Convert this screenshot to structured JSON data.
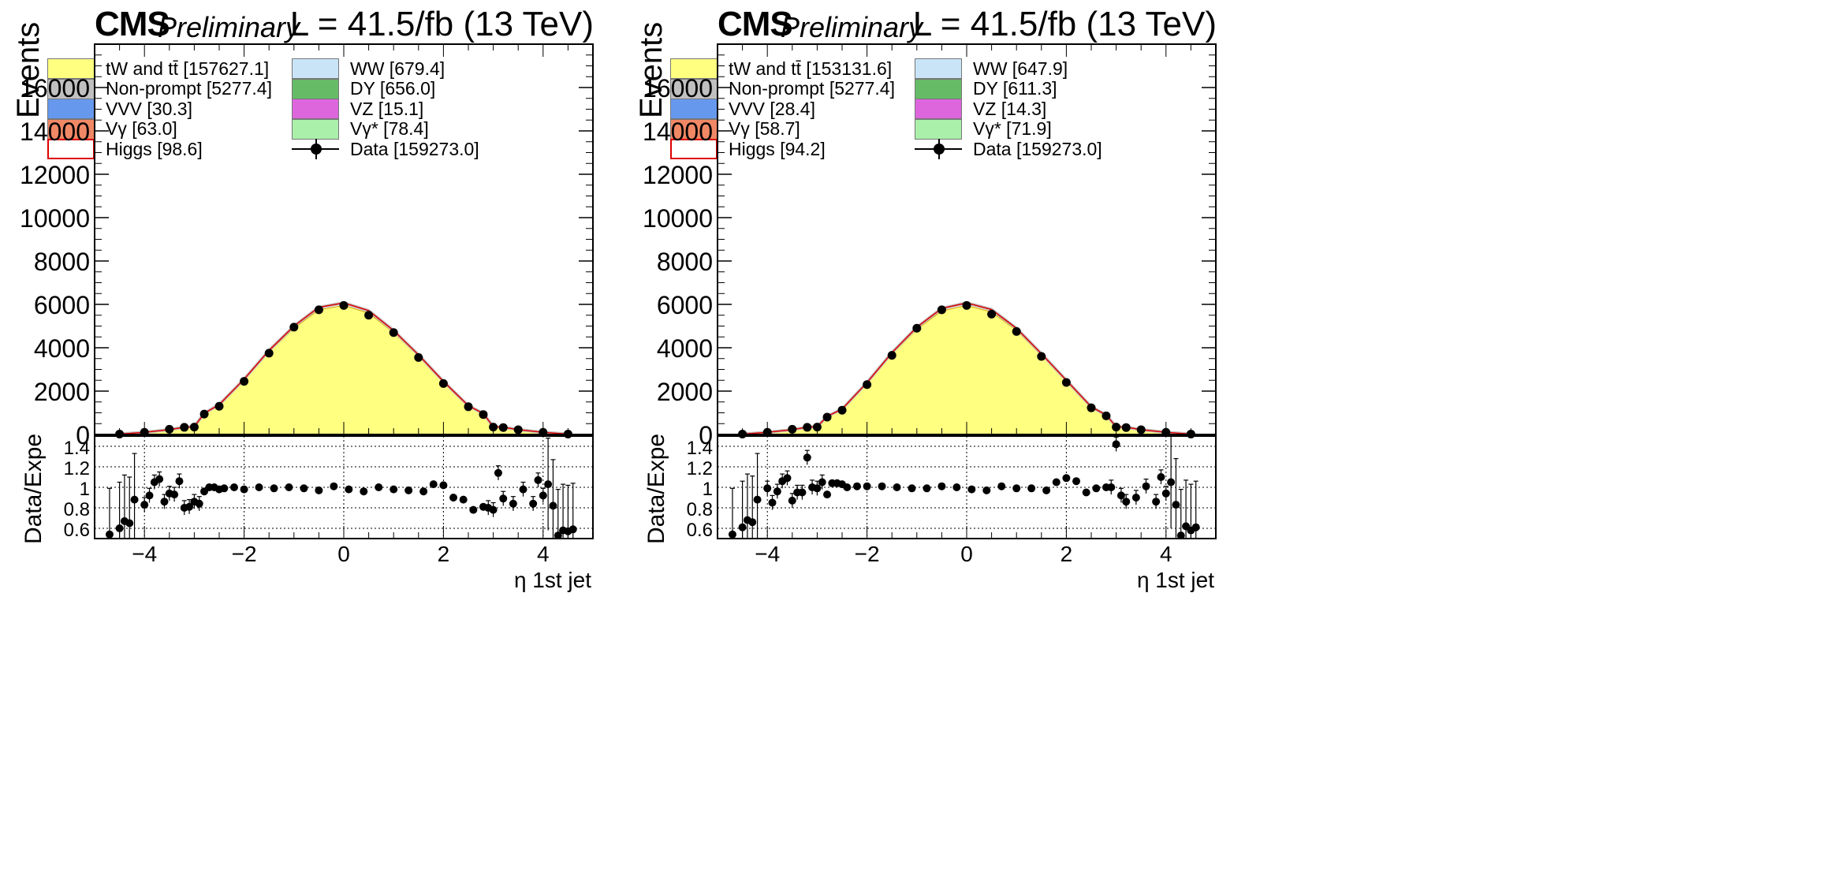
{
  "panels": [
    {
      "experiment": "CMS",
      "status": "Preliminary",
      "lumi": "L = 41.5/fb (13 TeV)",
      "ylabel": "Events",
      "ratio_ylabel": "Data/Expected",
      "xlabel": "η 1st jet",
      "legend": [
        {
          "label": "tW and tt̄ [157627.1]",
          "color": "#ffff80",
          "style": "fill"
        },
        {
          "label": "WW [679.4]",
          "color": "#c9e4f7",
          "style": "fill"
        },
        {
          "label": "Non-prompt [5277.4]",
          "color": "#c0c0c0",
          "style": "fill"
        },
        {
          "label": "DY [656.0]",
          "color": "#66bb66",
          "style": "fill"
        },
        {
          "label": "VVV [30.3]",
          "color": "#6699ee",
          "style": "fill"
        },
        {
          "label": "VZ [15.1]",
          "color": "#dd66dd",
          "style": "fill"
        },
        {
          "label": "Vγ [63.0]",
          "color": "#f08866",
          "style": "fill"
        },
        {
          "label": "Vγ* [78.4]",
          "color": "#aaf0aa",
          "style": "fill"
        },
        {
          "label": "Higgs [98.6]",
          "color": "#dd0000",
          "style": "line"
        },
        {
          "label": "Data [159273.0]",
          "color": "#000000",
          "style": "marker"
        }
      ]
    },
    {
      "experiment": "CMS",
      "status": "Preliminary",
      "lumi": "L = 41.5/fb (13 TeV)",
      "ylabel": "Events",
      "ratio_ylabel": "Data/Expected",
      "xlabel": "η 1st jet",
      "legend": [
        {
          "label": "tW and tt̄ [153131.6]",
          "color": "#ffff80",
          "style": "fill"
        },
        {
          "label": "WW [647.9]",
          "color": "#c9e4f7",
          "style": "fill"
        },
        {
          "label": "Non-prompt [5277.4]",
          "color": "#c0c0c0",
          "style": "fill"
        },
        {
          "label": "DY [611.3]",
          "color": "#66bb66",
          "style": "fill"
        },
        {
          "label": "VVV [28.4]",
          "color": "#6699ee",
          "style": "fill"
        },
        {
          "label": "VZ [14.3]",
          "color": "#dd66dd",
          "style": "fill"
        },
        {
          "label": "Vγ [58.7]",
          "color": "#f08866",
          "style": "fill"
        },
        {
          "label": "Vγ* [71.9]",
          "color": "#aaf0aa",
          "style": "fill"
        },
        {
          "label": "Higgs [94.2]",
          "color": "#dd0000",
          "style": "line"
        },
        {
          "label": "Data [159273.0]",
          "color": "#000000",
          "style": "marker"
        }
      ]
    }
  ],
  "chart_data": [
    {
      "type": "area",
      "xlim": [
        -5,
        5
      ],
      "ylim": [
        0,
        18000
      ],
      "yticks": [
        0,
        2000,
        4000,
        6000,
        8000,
        10000,
        12000,
        14000,
        16000
      ],
      "xticks": [
        -4,
        -2,
        0,
        2,
        4
      ],
      "x": [
        -4.5,
        -4.0,
        -3.5,
        -3.2,
        -3.0,
        -2.8,
        -2.5,
        -2.0,
        -1.5,
        -1.0,
        -0.5,
        0.0,
        0.5,
        1.0,
        1.5,
        2.0,
        2.5,
        2.8,
        3.0,
        3.2,
        3.5,
        4.0,
        4.5
      ],
      "stack_total": [
        20,
        100,
        220,
        330,
        350,
        960,
        1350,
        2500,
        3800,
        4900,
        5750,
        5950,
        5600,
        4700,
        3600,
        2400,
        1300,
        950,
        350,
        330,
        220,
        100,
        20
      ],
      "data": [
        20,
        100,
        240,
        330,
        340,
        940,
        1300,
        2450,
        3750,
        4950,
        5750,
        5950,
        5500,
        4700,
        3550,
        2350,
        1280,
        920,
        340,
        320,
        220,
        100,
        20
      ],
      "ratio_ylim": [
        0.5,
        1.5
      ],
      "ratio_yticks": [
        0.6,
        0.8,
        1,
        1.2,
        1.4
      ],
      "ratio_x": [
        -4.7,
        -4.5,
        -4.4,
        -4.3,
        -4.2,
        -4.0,
        -3.9,
        -3.8,
        -3.7,
        -3.6,
        -3.5,
        -3.4,
        -3.3,
        -3.2,
        -3.1,
        -3.0,
        -2.9,
        -2.8,
        -2.7,
        -2.6,
        -2.5,
        -2.4,
        -2.2,
        -2.0,
        -1.7,
        -1.4,
        -1.1,
        -0.8,
        -0.5,
        -0.2,
        0.1,
        0.4,
        0.7,
        1.0,
        1.3,
        1.6,
        1.8,
        2.0,
        2.2,
        2.4,
        2.6,
        2.8,
        2.9,
        3.0,
        3.1,
        3.2,
        3.4,
        3.6,
        3.8,
        3.9,
        4.0,
        4.1,
        4.2,
        4.3,
        4.4,
        4.5,
        4.6
      ],
      "ratio": [
        0.54,
        0.6,
        0.67,
        0.65,
        0.88,
        0.83,
        0.92,
        1.05,
        1.08,
        0.86,
        0.94,
        0.93,
        1.06,
        0.8,
        0.81,
        0.86,
        0.84,
        0.96,
        1.0,
        1.0,
        0.98,
        0.99,
        1.0,
        0.98,
        1.0,
        0.99,
        1.0,
        0.99,
        0.97,
        1.01,
        0.98,
        0.96,
        1.0,
        0.98,
        0.97,
        0.96,
        1.03,
        1.02,
        0.9,
        0.88,
        0.78,
        0.81,
        0.8,
        0.78,
        1.14,
        0.89,
        0.84,
        0.98,
        0.84,
        1.07,
        0.92,
        1.03,
        0.82,
        0.53,
        0.58,
        0.57,
        0.59
      ]
    },
    {
      "type": "area",
      "xlim": [
        -5,
        5
      ],
      "ylim": [
        0,
        18000
      ],
      "yticks": [
        0,
        2000,
        4000,
        6000,
        8000,
        10000,
        12000,
        14000,
        16000
      ],
      "xticks": [
        -4,
        -2,
        0,
        2,
        4
      ],
      "x": [
        -4.5,
        -4.0,
        -3.5,
        -3.2,
        -3.0,
        -2.8,
        -2.5,
        -2.0,
        -1.5,
        -1.0,
        -0.5,
        0.0,
        0.5,
        1.0,
        1.5,
        2.0,
        2.5,
        2.8,
        3.0,
        3.2,
        3.5,
        4.0,
        4.5
      ],
      "stack_total": [
        20,
        100,
        220,
        330,
        350,
        820,
        1150,
        2350,
        3700,
        4850,
        5700,
        5950,
        5650,
        4800,
        3650,
        2450,
        1250,
        880,
        350,
        330,
        220,
        100,
        20
      ],
      "data": [
        20,
        100,
        240,
        330,
        340,
        800,
        1120,
        2300,
        3650,
        4900,
        5750,
        5950,
        5550,
        4750,
        3600,
        2400,
        1230,
        860,
        340,
        320,
        220,
        100,
        20
      ],
      "ratio_ylim": [
        0.5,
        1.5
      ],
      "ratio_yticks": [
        0.6,
        0.8,
        1,
        1.2,
        1.4
      ],
      "ratio_x": [
        -4.7,
        -4.5,
        -4.4,
        -4.3,
        -4.2,
        -4.0,
        -3.9,
        -3.8,
        -3.7,
        -3.6,
        -3.5,
        -3.4,
        -3.3,
        -3.2,
        -3.1,
        -3.0,
        -2.9,
        -2.8,
        -2.7,
        -2.6,
        -2.5,
        -2.4,
        -2.2,
        -2.0,
        -1.7,
        -1.4,
        -1.1,
        -0.8,
        -0.5,
        -0.2,
        0.1,
        0.4,
        0.7,
        1.0,
        1.3,
        1.6,
        1.8,
        2.0,
        2.2,
        2.4,
        2.6,
        2.8,
        2.9,
        3.0,
        3.1,
        3.2,
        3.4,
        3.6,
        3.8,
        3.9,
        4.0,
        4.1,
        4.2,
        4.3,
        4.4,
        4.5,
        4.6
      ],
      "ratio": [
        0.54,
        0.61,
        0.68,
        0.66,
        0.88,
        0.99,
        0.85,
        0.96,
        1.06,
        1.09,
        0.87,
        0.95,
        0.95,
        1.29,
        1.0,
        0.99,
        1.05,
        0.93,
        1.04,
        1.04,
        1.03,
        1.0,
        1.01,
        1.01,
        1.01,
        1.0,
        0.99,
        0.99,
        1.01,
        1.0,
        0.98,
        0.97,
        1.01,
        0.99,
        0.99,
        0.97,
        1.05,
        1.09,
        1.06,
        0.95,
        0.99,
        1.0,
        1.0,
        1.42,
        0.92,
        0.86,
        0.9,
        1.01,
        0.86,
        1.1,
        0.94,
        1.05,
        0.83,
        0.53,
        0.62,
        0.58,
        0.61
      ]
    }
  ]
}
